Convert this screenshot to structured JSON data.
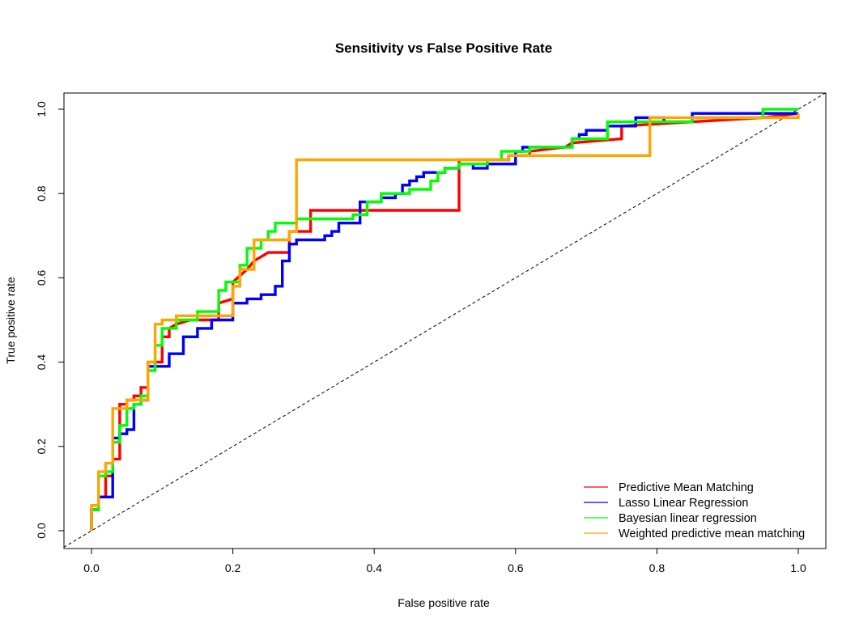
{
  "chart_data": {
    "type": "line",
    "title": "Sensitivity vs False Positive Rate",
    "xlabel": "False positive rate",
    "ylabel": "True positive rate",
    "xlim": [
      0,
      1
    ],
    "ylim": [
      0,
      1
    ],
    "x_ticks": [
      "0.0",
      "0.2",
      "0.4",
      "0.6",
      "0.8",
      "1.0"
    ],
    "y_ticks": [
      "0.0",
      "0.2",
      "0.4",
      "0.6",
      "0.8",
      "1.0"
    ],
    "grid": false,
    "legend_position": "bottom-right",
    "diagonal_reference": {
      "x": [
        0,
        1
      ],
      "y": [
        0,
        1
      ],
      "style": "dashed",
      "color": "#000000"
    },
    "series": [
      {
        "name": "Predictive Mean Matching",
        "color": "#FF0000",
        "x": [
          0,
          0,
          0.01,
          0.01,
          0.02,
          0.02,
          0.03,
          0.03,
          0.04,
          0.04,
          0.05,
          0.05,
          0.06,
          0.06,
          0.07,
          0.07,
          0.08,
          0.08,
          0.1,
          0.1,
          0.11,
          0.11,
          0.12,
          0.14,
          0.14,
          0.17,
          0.18,
          0.18,
          0.2,
          0.2,
          0.22,
          0.23,
          0.25,
          0.25,
          0.28,
          0.28,
          0.31,
          0.31,
          0.52,
          0.52,
          0.59,
          0.59,
          0.62,
          0.62,
          0.67,
          0.68,
          0.75,
          0.75,
          0.85,
          0.95,
          1.0
        ],
        "y": [
          0,
          0.05,
          0.05,
          0.08,
          0.08,
          0.13,
          0.13,
          0.17,
          0.17,
          0.3,
          0.3,
          0.31,
          0.31,
          0.32,
          0.32,
          0.34,
          0.34,
          0.4,
          0.4,
          0.46,
          0.46,
          0.48,
          0.49,
          0.5,
          0.5,
          0.5,
          0.5,
          0.54,
          0.55,
          0.59,
          0.62,
          0.64,
          0.66,
          0.66,
          0.66,
          0.71,
          0.71,
          0.76,
          0.76,
          0.88,
          0.88,
          0.89,
          0.89,
          0.9,
          0.91,
          0.92,
          0.93,
          0.96,
          0.97,
          0.98,
          0.99
        ]
      },
      {
        "name": "Lasso Linear Regression",
        "color": "#0000FF",
        "x": [
          0,
          0,
          0.01,
          0.01,
          0.03,
          0.03,
          0.04,
          0.04,
          0.05,
          0.05,
          0.06,
          0.06,
          0.07,
          0.07,
          0.08,
          0.08,
          0.11,
          0.11,
          0.13,
          0.13,
          0.15,
          0.15,
          0.17,
          0.17,
          0.2,
          0.2,
          0.22,
          0.22,
          0.24,
          0.24,
          0.26,
          0.26,
          0.27,
          0.27,
          0.28,
          0.28,
          0.29,
          0.29,
          0.33,
          0.33,
          0.34,
          0.34,
          0.35,
          0.35,
          0.38,
          0.38,
          0.41,
          0.41,
          0.43,
          0.43,
          0.44,
          0.44,
          0.45,
          0.45,
          0.46,
          0.46,
          0.47,
          0.47,
          0.5,
          0.5,
          0.52,
          0.52,
          0.54,
          0.54,
          0.56,
          0.56,
          0.6,
          0.6,
          0.61,
          0.61,
          0.68,
          0.68,
          0.69,
          0.69,
          0.7,
          0.7,
          0.73,
          0.73,
          0.77,
          0.77,
          0.81,
          0.81,
          0.85,
          0.85,
          0.88,
          0.88,
          1.0
        ],
        "y": [
          0,
          0.05,
          0.05,
          0.08,
          0.08,
          0.22,
          0.22,
          0.23,
          0.23,
          0.24,
          0.24,
          0.3,
          0.3,
          0.31,
          0.31,
          0.39,
          0.39,
          0.42,
          0.42,
          0.46,
          0.46,
          0.48,
          0.48,
          0.5,
          0.5,
          0.54,
          0.54,
          0.55,
          0.55,
          0.56,
          0.56,
          0.58,
          0.58,
          0.64,
          0.64,
          0.68,
          0.68,
          0.69,
          0.69,
          0.7,
          0.7,
          0.71,
          0.71,
          0.73,
          0.73,
          0.78,
          0.78,
          0.79,
          0.79,
          0.8,
          0.8,
          0.82,
          0.82,
          0.83,
          0.83,
          0.84,
          0.84,
          0.85,
          0.85,
          0.86,
          0.86,
          0.87,
          0.87,
          0.86,
          0.86,
          0.87,
          0.87,
          0.9,
          0.9,
          0.91,
          0.91,
          0.93,
          0.93,
          0.94,
          0.94,
          0.95,
          0.95,
          0.96,
          0.96,
          0.98,
          0.98,
          0.97,
          0.97,
          0.99,
          0.99,
          0.99,
          0.99
        ]
      },
      {
        "name": "Bayesian linear regression",
        "color": "#00FF00",
        "x": [
          0,
          0,
          0.01,
          0.01,
          0.02,
          0.02,
          0.03,
          0.03,
          0.04,
          0.04,
          0.05,
          0.05,
          0.06,
          0.06,
          0.07,
          0.07,
          0.08,
          0.08,
          0.09,
          0.09,
          0.1,
          0.1,
          0.12,
          0.12,
          0.15,
          0.15,
          0.18,
          0.18,
          0.19,
          0.19,
          0.21,
          0.21,
          0.22,
          0.22,
          0.24,
          0.24,
          0.25,
          0.25,
          0.26,
          0.26,
          0.29,
          0.29,
          0.37,
          0.37,
          0.39,
          0.39,
          0.41,
          0.41,
          0.45,
          0.45,
          0.48,
          0.48,
          0.49,
          0.49,
          0.5,
          0.5,
          0.52,
          0.52,
          0.56,
          0.56,
          0.58,
          0.58,
          0.62,
          0.62,
          0.68,
          0.68,
          0.73,
          0.73,
          0.85,
          0.85,
          0.95,
          0.95,
          1.0
        ],
        "y": [
          0,
          0.05,
          0.05,
          0.13,
          0.13,
          0.14,
          0.14,
          0.21,
          0.21,
          0.25,
          0.25,
          0.29,
          0.29,
          0.3,
          0.3,
          0.32,
          0.32,
          0.38,
          0.38,
          0.44,
          0.44,
          0.48,
          0.48,
          0.5,
          0.5,
          0.52,
          0.52,
          0.57,
          0.57,
          0.59,
          0.59,
          0.63,
          0.63,
          0.67,
          0.67,
          0.69,
          0.69,
          0.71,
          0.71,
          0.73,
          0.73,
          0.74,
          0.74,
          0.75,
          0.75,
          0.78,
          0.78,
          0.8,
          0.8,
          0.81,
          0.81,
          0.83,
          0.83,
          0.85,
          0.85,
          0.86,
          0.86,
          0.87,
          0.87,
          0.88,
          0.88,
          0.9,
          0.9,
          0.91,
          0.91,
          0.93,
          0.93,
          0.97,
          0.97,
          0.98,
          0.98,
          1.0,
          1.0
        ]
      },
      {
        "name": "Weighted predictive mean matching",
        "color": "#FFA500",
        "x": [
          0,
          0,
          0.01,
          0.01,
          0.02,
          0.02,
          0.03,
          0.03,
          0.05,
          0.05,
          0.08,
          0.08,
          0.09,
          0.09,
          0.1,
          0.1,
          0.12,
          0.12,
          0.17,
          0.17,
          0.2,
          0.2,
          0.21,
          0.21,
          0.23,
          0.23,
          0.28,
          0.28,
          0.29,
          0.29,
          0.59,
          0.59,
          0.79,
          0.79,
          1.0,
          1.0
        ],
        "y": [
          0,
          0.06,
          0.06,
          0.14,
          0.14,
          0.16,
          0.16,
          0.29,
          0.29,
          0.31,
          0.31,
          0.4,
          0.4,
          0.49,
          0.49,
          0.5,
          0.5,
          0.51,
          0.51,
          0.51,
          0.51,
          0.58,
          0.58,
          0.62,
          0.62,
          0.69,
          0.69,
          0.71,
          0.71,
          0.88,
          0.88,
          0.89,
          0.89,
          0.98,
          0.98,
          0.99
        ]
      }
    ]
  }
}
